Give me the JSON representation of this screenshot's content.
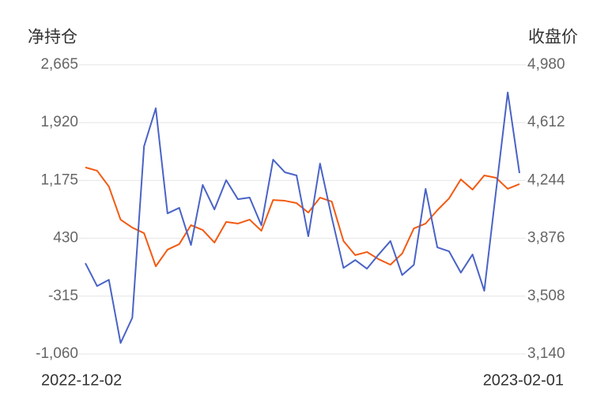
{
  "chart_data": {
    "type": "line",
    "y_title": "净持仓",
    "y2_title": "收盘价",
    "categories": [
      "2022-12-02",
      null,
      null,
      null,
      null,
      null,
      null,
      null,
      null,
      null,
      null,
      null,
      null,
      null,
      null,
      null,
      null,
      null,
      null,
      null,
      null,
      null,
      null,
      null,
      null,
      null,
      null,
      null,
      null,
      null,
      null,
      null,
      null,
      null,
      null,
      null,
      null,
      "2023-02-01"
    ],
    "series": [
      {
        "name": "净持仓",
        "color": "#4a63c6",
        "values": [
          110,
          -185,
          -104,
          -918,
          -593,
          1616,
          2105,
          751,
          822,
          344,
          1118,
          802,
          1179,
          934,
          955,
          598,
          1443,
          1281,
          1240,
          456,
          1393,
          700,
          49,
          150,
          39,
          222,
          395,
          -43,
          89,
          1067,
          313,
          262,
          -12,
          222,
          -246,
          1036,
          2309,
          1270
        ]
      },
      {
        "name": "收盘价",
        "color": "#f25a12",
        "axis": "y2",
        "values": [
          4327,
          4306,
          4206,
          3995,
          3944,
          3909,
          3698,
          3804,
          3839,
          3960,
          3929,
          3849,
          3980,
          3970,
          3995,
          3924,
          4120,
          4115,
          4100,
          4040,
          4135,
          4110,
          3859,
          3769,
          3789,
          3743,
          3708,
          3779,
          3939,
          3970,
          4055,
          4130,
          4251,
          4186,
          4276,
          4261,
          4191,
          4221
        ]
      }
    ],
    "ylim": [
      -1060,
      2665
    ],
    "yticks": [
      {
        "value": -1060,
        "label": "-1,060"
      },
      -315,
      430,
      {
        "value": 1175,
        "label": "1,175"
      },
      {
        "value": 1920,
        "label": "1,920"
      },
      {
        "value": 2665,
        "label": "2,665"
      }
    ],
    "y2lim": [
      3140,
      4980
    ],
    "y2ticks": [
      {
        "value": 3140,
        "label": "3,140"
      },
      {
        "value": 3508,
        "label": "3,508"
      },
      {
        "value": 3876,
        "label": "3,876"
      },
      {
        "value": 4244,
        "label": "4,244"
      },
      {
        "value": 4612,
        "label": "4,612"
      },
      {
        "value": 4980,
        "label": "4,980"
      }
    ],
    "grid": true
  }
}
